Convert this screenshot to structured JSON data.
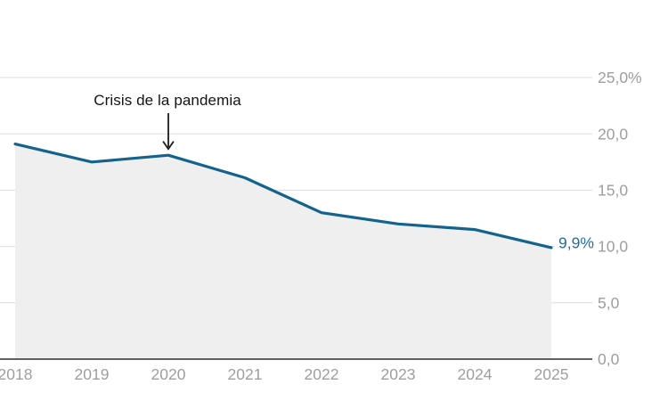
{
  "chart_data": {
    "type": "area",
    "title": "",
    "categories": [
      "2018",
      "2019",
      "2020",
      "2021",
      "2022",
      "2023",
      "2024",
      "2025"
    ],
    "values": [
      19.1,
      17.5,
      18.1,
      16.1,
      13.0,
      12.0,
      11.5,
      9.9
    ],
    "unit": "%",
    "xlabel": "",
    "ylabel": "",
    "ylim": [
      0,
      25
    ],
    "grid": true,
    "legend_position": "none",
    "yticks": [
      {
        "value": 0,
        "label": "0,0"
      },
      {
        "value": 5,
        "label": "5,0"
      },
      {
        "value": 10,
        "label": "10,0"
      },
      {
        "value": 15,
        "label": "15,0"
      },
      {
        "value": 20,
        "label": "20,0"
      },
      {
        "value": 25,
        "label": "25,0%"
      }
    ],
    "annotation": {
      "text": "Crisis de la pandemia",
      "target_category": "2020"
    },
    "end_label": "9,9%",
    "colors": {
      "line": "#14638c",
      "area_fill": "#efefef",
      "grid": "#dcdcdc",
      "axis": "#2e2e2e",
      "tick_text": "#9e9e9e",
      "annotation_text": "#141414",
      "arrow": "#1a1a1a",
      "end_label_text": "#1e6fa6"
    }
  }
}
